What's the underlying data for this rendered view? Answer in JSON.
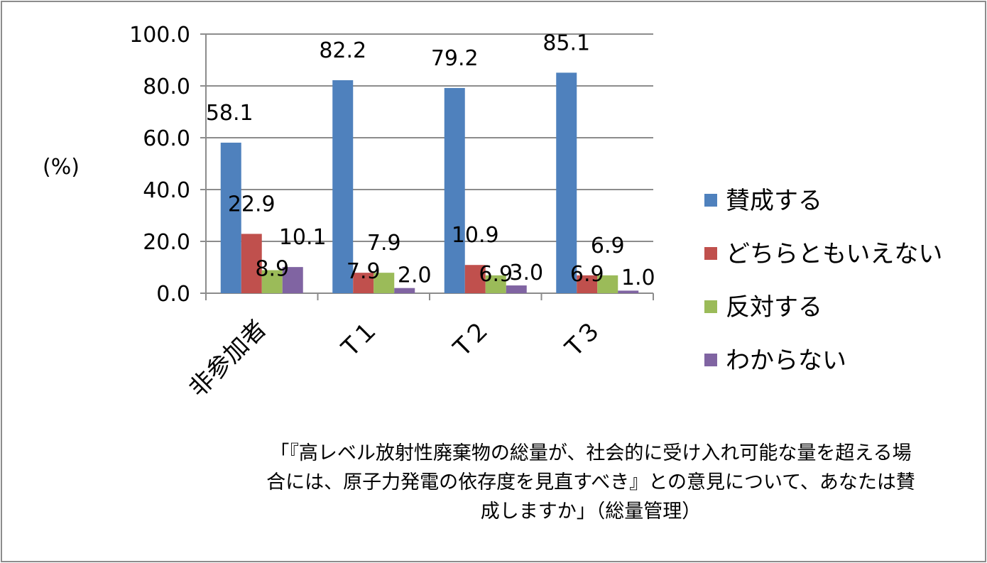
{
  "chart_data": {
    "type": "bar",
    "ylabel": "(%)",
    "ylim": [
      0,
      100
    ],
    "yticks": [
      "0.0",
      "20.0",
      "40.0",
      "60.0",
      "80.0",
      "100.0"
    ],
    "grid": true,
    "legend_position": "right",
    "categories": [
      "非参加者",
      "T１",
      "T２",
      "T３"
    ],
    "series": [
      {
        "name": "賛成する",
        "color": "#4f81bd",
        "values": [
          58.1,
          82.2,
          79.2,
          85.1
        ],
        "labels": [
          "58.1",
          "82.2",
          "79.2",
          "85.1"
        ]
      },
      {
        "name": "どちらともいえない",
        "color": "#c0504d",
        "values": [
          22.9,
          7.9,
          10.9,
          6.9
        ],
        "labels": [
          "22.9",
          "7.9",
          "10.9",
          "6.9"
        ]
      },
      {
        "name": "反対する",
        "color": "#9bbb59",
        "values": [
          8.9,
          7.9,
          6.9,
          6.9
        ],
        "labels": [
          "8.9",
          "7.9",
          "6.9",
          "6.9"
        ]
      },
      {
        "name": "わからない",
        "color": "#8064a2",
        "values": [
          10.1,
          2.0,
          3.0,
          1.0
        ],
        "labels": [
          "10.1",
          "2.0",
          "3.0",
          "1.0"
        ]
      }
    ]
  },
  "caption": {
    "line1": "「『高レベル放射性廃棄物の総量が、社会的に受け入れ可能な量を超える場",
    "line2": "合には、原子力発電の依存度を見直すべき』との意見について、あなたは賛",
    "line3": "成しますか」（総量管理）"
  }
}
